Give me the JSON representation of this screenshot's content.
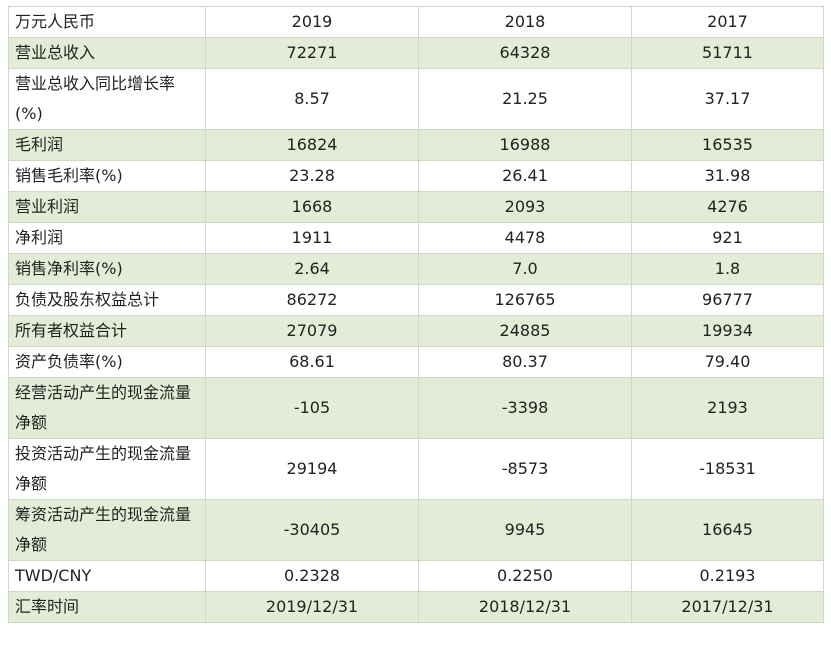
{
  "header": [
    "万元人民币",
    "2019",
    "2018",
    "2017"
  ],
  "rows": [
    {
      "label": "营业总收入",
      "values": [
        "72271",
        "64328",
        "51711"
      ]
    },
    {
      "label": "营业总收入同比增长率(%)",
      "values": [
        "8.57",
        "21.25",
        "37.17"
      ]
    },
    {
      "label": "毛利润",
      "values": [
        "16824",
        "16988",
        "16535"
      ]
    },
    {
      "label": "销售毛利率(%)",
      "values": [
        "23.28",
        "26.41",
        "31.98"
      ]
    },
    {
      "label": "营业利润",
      "values": [
        "1668",
        "2093",
        "4276"
      ]
    },
    {
      "label": "净利润",
      "values": [
        "1911",
        "4478",
        "921"
      ]
    },
    {
      "label": "销售净利率(%)",
      "values": [
        "2.64",
        "7.0",
        "1.8"
      ]
    },
    {
      "label": "负债及股东权益总计",
      "values": [
        "86272",
        "126765",
        "96777"
      ]
    },
    {
      "label": "所有者权益合计",
      "values": [
        "27079",
        "24885",
        "19934"
      ]
    },
    {
      "label": "资产负债率(%)",
      "values": [
        "68.61",
        "80.37",
        "79.40"
      ]
    },
    {
      "label": "经营活动产生的现金流量净额",
      "values": [
        "-105",
        "-3398",
        "2193"
      ]
    },
    {
      "label": "投资活动产生的现金流量净额",
      "values": [
        "29194",
        "-8573",
        "-18531"
      ]
    },
    {
      "label": "筹资活动产生的现金流量净额",
      "values": [
        "-30405",
        "9945",
        "16645"
      ]
    },
    {
      "label": "TWD/CNY",
      "values": [
        "0.2328",
        "0.2250",
        "0.2193"
      ]
    },
    {
      "label": "汇率时间",
      "values": [
        "2019/12/31",
        "2018/12/31",
        "2017/12/31"
      ]
    }
  ]
}
